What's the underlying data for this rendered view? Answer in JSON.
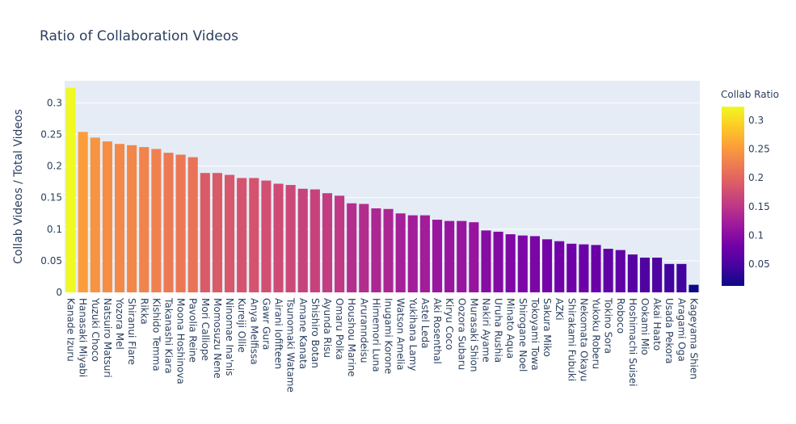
{
  "chart_data": {
    "type": "bar",
    "title": "Ratio of Collaboration Videos",
    "xlabel": "",
    "ylabel": "Collab Videos / Total Videos",
    "ylim": [
      0,
      0.335
    ],
    "yticks": [
      0,
      0.05,
      0.1,
      0.15,
      0.2,
      0.25,
      0.3
    ],
    "ytick_labels": [
      "0",
      "0.05",
      "0.1",
      "0.15",
      "0.2",
      "0.25",
      "0.3"
    ],
    "grid": true,
    "categories": [
      "Kanade Izuru",
      "Hanasaki Miyabi",
      "Yuzuki Choco",
      "Natsuiro Matsuri",
      "Yozora Mel",
      "Shiranui Flare",
      "Rikka",
      "Kishido Temma",
      "Takanashi Kiara",
      "Moona Hoshinova",
      "Pavolia Reine",
      "Mori Calliope",
      "Momosuzu Nene",
      "Ninomae Ina'nis",
      "Kureiji Ollie",
      "Anya Melfissa",
      "Gawr Gura",
      "Airani Iofifteen",
      "Tsunomaki Watame",
      "Amane Kanata",
      "Shishiro Botan",
      "Ayunda Risu",
      "Omaru Polka",
      "Houshou Marine",
      "Aruranndeisu",
      "Himemori Luna",
      "Inugami Korone",
      "Watson Amelia",
      "Yukihana Lamy",
      "Astel Leda",
      "Aki Rosenthal",
      "Kiryu Coco",
      "Oozora Subaru",
      "Murasaki Shion",
      "Nakiri Ayame",
      "Uruha Rushia",
      "Minato Aqua",
      "Shirogane Noel",
      "Tokoyami Towa",
      "Sakura Miko",
      "AZKi",
      "Shirakami Fubuki",
      "Nekomata Okayu",
      "Yukoku Roberu",
      "Tokino Sora",
      "Roboco",
      "Hoshimachi Suisei",
      "Ookami Mio",
      "Akai Haato",
      "Usada Pekora",
      "Aragami Oga",
      "Kageyama Shien"
    ],
    "values": [
      0.324,
      0.254,
      0.245,
      0.239,
      0.235,
      0.233,
      0.23,
      0.227,
      0.221,
      0.218,
      0.214,
      0.189,
      0.189,
      0.186,
      0.181,
      0.181,
      0.177,
      0.172,
      0.17,
      0.164,
      0.163,
      0.157,
      0.153,
      0.141,
      0.14,
      0.133,
      0.132,
      0.125,
      0.122,
      0.122,
      0.115,
      0.113,
      0.113,
      0.111,
      0.098,
      0.096,
      0.092,
      0.09,
      0.089,
      0.084,
      0.081,
      0.077,
      0.076,
      0.075,
      0.069,
      0.067,
      0.06,
      0.055,
      0.055,
      0.045,
      0.045,
      0.012
    ],
    "colorbar": {
      "title": "Collab Ratio",
      "colorscale": "Plasma",
      "cmin": 0.012,
      "cmax": 0.324,
      "ticks": [
        0.05,
        0.1,
        0.15,
        0.2,
        0.25,
        0.3
      ],
      "tick_labels": [
        "0.05",
        "0.1",
        "0.15",
        "0.2",
        "0.25",
        "0.3"
      ]
    }
  }
}
